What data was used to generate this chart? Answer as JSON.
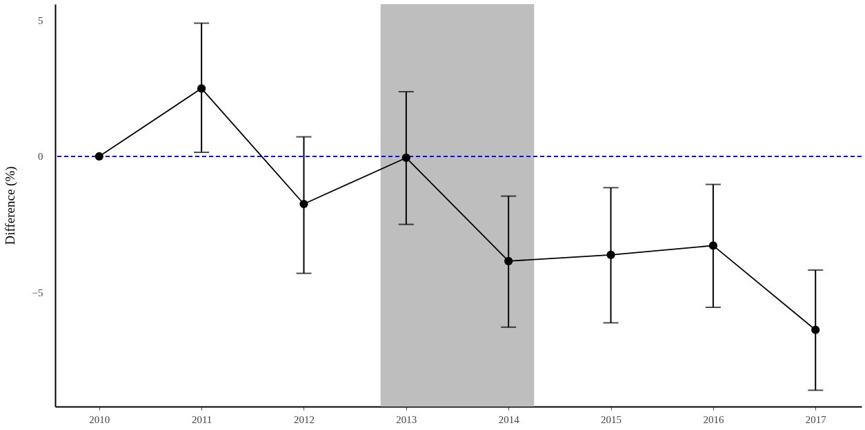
{
  "chart_data": {
    "type": "line",
    "ylabel": "Difference (%)",
    "x": [
      2010,
      2011,
      2012,
      2013,
      2014,
      2015,
      2016,
      2017
    ],
    "series": [
      {
        "color": "#000000",
        "values": [
          0,
          2.5,
          -1.75,
          -0.05,
          -3.85,
          -3.62,
          -3.28,
          -6.38
        ],
        "errors": [
          null,
          [
            0.15,
            4.9
          ],
          [
            -4.3,
            0.72
          ],
          [
            -2.5,
            2.38
          ],
          [
            -6.28,
            -1.46
          ],
          [
            -6.12,
            -1.15
          ],
          [
            -5.55,
            -1.03
          ],
          [
            -8.6,
            -4.18
          ]
        ]
      }
    ],
    "xlim": [
      2009.57,
      2017.45
    ],
    "xticks": [
      2010,
      2011,
      2012,
      2013,
      2014,
      2015,
      2016,
      2017
    ],
    "ylim": [
      -9.2,
      5.6
    ],
    "yticks": [
      5,
      0,
      {
        "value": -5,
        "label": "−5"
      }
    ],
    "bands": [
      {
        "axis": "x",
        "from": 2012.75,
        "to": 2014.25,
        "color": "#bebebe"
      }
    ],
    "ref_lines": [
      {
        "axis": "y",
        "value": 0,
        "color": "#0000ff",
        "line_style": "dashed"
      }
    ],
    "marker": "circle",
    "line_style": "solid",
    "grid": false
  }
}
